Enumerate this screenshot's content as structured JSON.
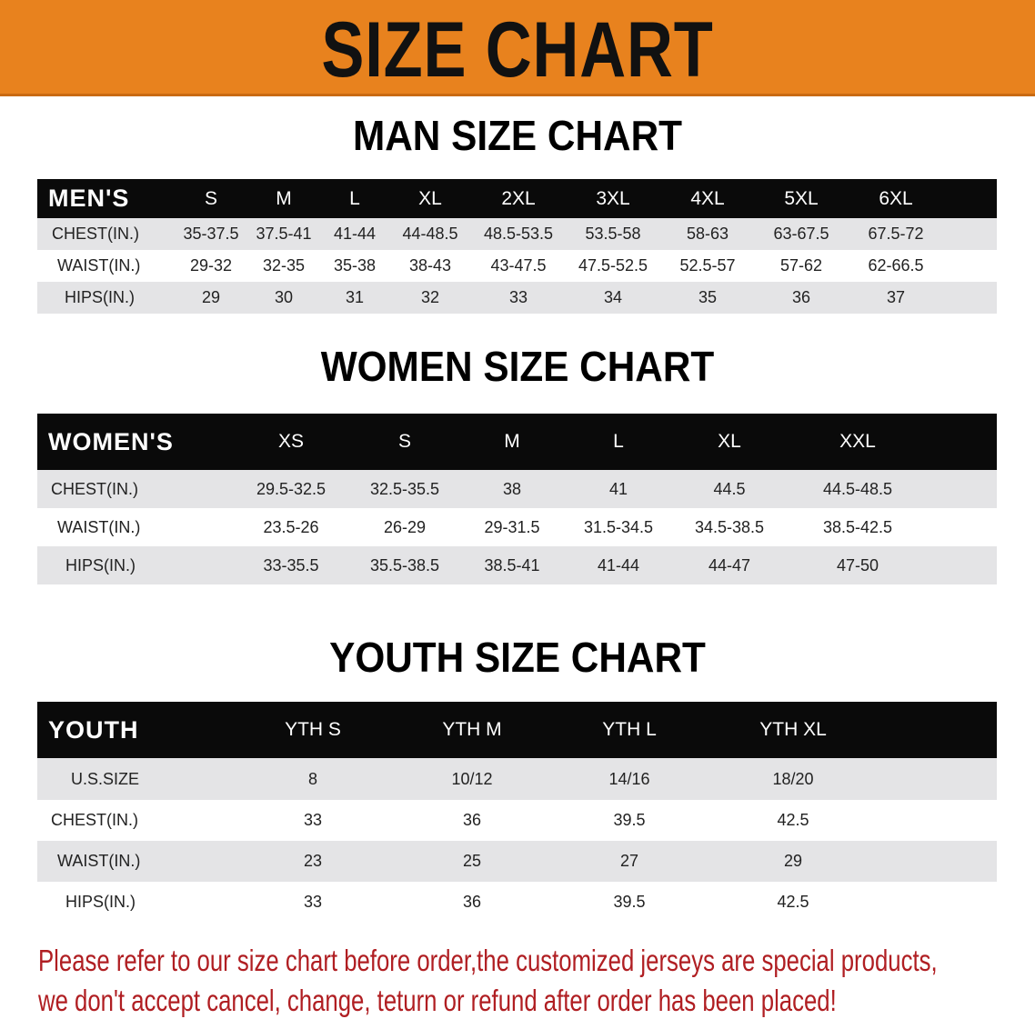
{
  "banner": {
    "title": "SIZE CHART",
    "color": "#e8821e"
  },
  "men": {
    "title": "MAN SIZE CHART",
    "header": [
      "MEN'S",
      "S",
      "M",
      "L",
      "XL",
      "2XL",
      "3XL",
      "4XL",
      "5XL",
      "6XL"
    ],
    "rows": [
      [
        "CHEST(IN.)",
        "35-37.5",
        "37.5-41",
        "41-44",
        "44-48.5",
        "48.5-53.5",
        "53.5-58",
        "58-63",
        "63-67.5",
        "67.5-72"
      ],
      [
        "WAIST(IN.)",
        "29-32",
        "32-35",
        "35-38",
        "38-43",
        "43-47.5",
        "47.5-52.5",
        "52.5-57",
        "57-62",
        "62-66.5"
      ],
      [
        "HIPS(IN.)",
        "29",
        "30",
        "31",
        "32",
        "33",
        "34",
        "35",
        "36",
        "37"
      ]
    ]
  },
  "women": {
    "title": "WOMEN SIZE CHART",
    "header": [
      "WOMEN'S",
      "XS",
      "S",
      "M",
      "L",
      "XL",
      "XXL"
    ],
    "rows": [
      [
        "CHEST(IN.)",
        "29.5-32.5",
        "32.5-35.5",
        "38",
        "41",
        "44.5",
        "44.5-48.5"
      ],
      [
        "WAIST(IN.)",
        "23.5-26",
        "26-29",
        "29-31.5",
        "31.5-34.5",
        "34.5-38.5",
        "38.5-42.5"
      ],
      [
        "HIPS(IN.)",
        "33-35.5",
        "35.5-38.5",
        "38.5-41",
        "41-44",
        "44-47",
        "47-50"
      ]
    ]
  },
  "youth": {
    "title": "YOUTH SIZE CHART",
    "header": [
      "YOUTH",
      "YTH S",
      "YTH M",
      "YTH L",
      "YTH XL"
    ],
    "rows": [
      [
        "U.S.SIZE",
        "8",
        "10/12",
        "14/16",
        "18/20"
      ],
      [
        "CHEST(IN.)",
        "33",
        "36",
        "39.5",
        "42.5"
      ],
      [
        "WAIST(IN.)",
        "23",
        "25",
        "27",
        "29"
      ],
      [
        "HIPS(IN.)",
        "33",
        "36",
        "39.5",
        "42.5"
      ]
    ]
  },
  "notice": {
    "line1": "Please refer to our size chart before order,the customized jerseys are special products,",
    "line2": "we don't accept cancel, change, teturn or refund after order has been placed!",
    "color": "#b01e22"
  }
}
